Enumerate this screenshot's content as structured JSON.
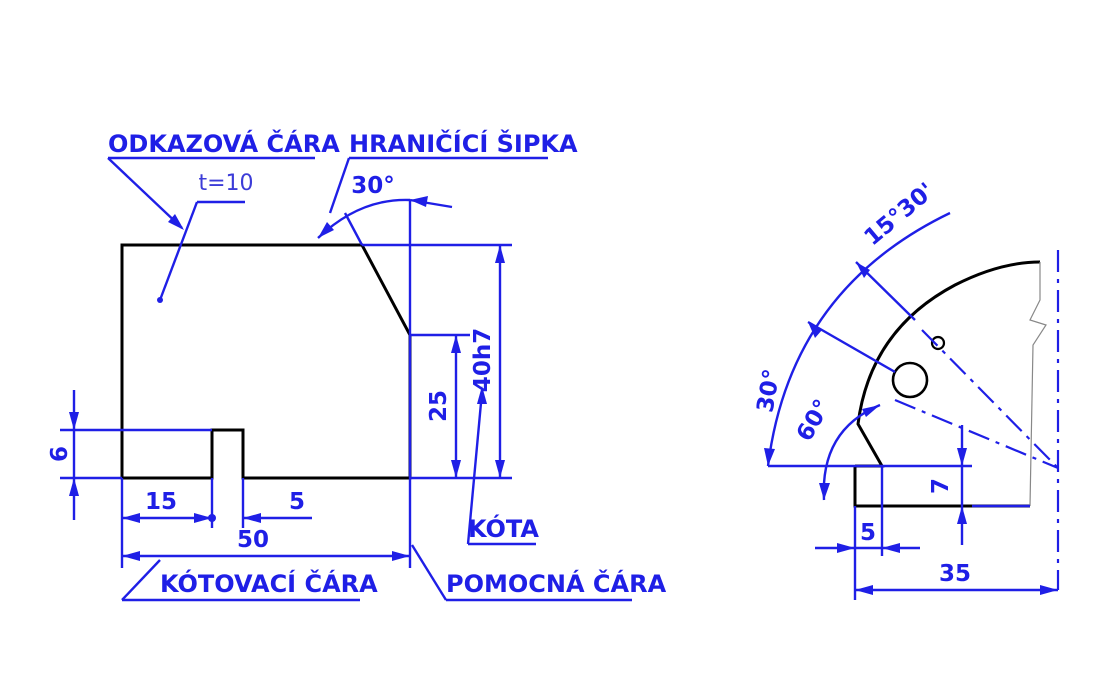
{
  "labels": {
    "leader_line": "ODKAZOVÁ ČÁRA",
    "terminator_arrow": "HRANIČÍCÍ ŠIPKA",
    "dimension_line": "KÓTOVACÍ ČÁRA",
    "extension_line": "POMOCNÁ ČÁRA",
    "dimension_value": "KÓTA"
  },
  "left_part": {
    "thickness": "t=10",
    "angle": "30°",
    "height_total": "40h7",
    "height_right": "25",
    "height_slot": "6",
    "width_left": "15",
    "width_slot": "5",
    "width_total": "50"
  },
  "right_part": {
    "angle_small": "15°30'",
    "angle_outer": "30°",
    "angle_inner": "60°",
    "height_step": "7",
    "width_step": "5",
    "width_total": "35"
  },
  "colors": {
    "dimension": "#1f1fe6",
    "outline": "#000000",
    "background": "#ffffff"
  }
}
